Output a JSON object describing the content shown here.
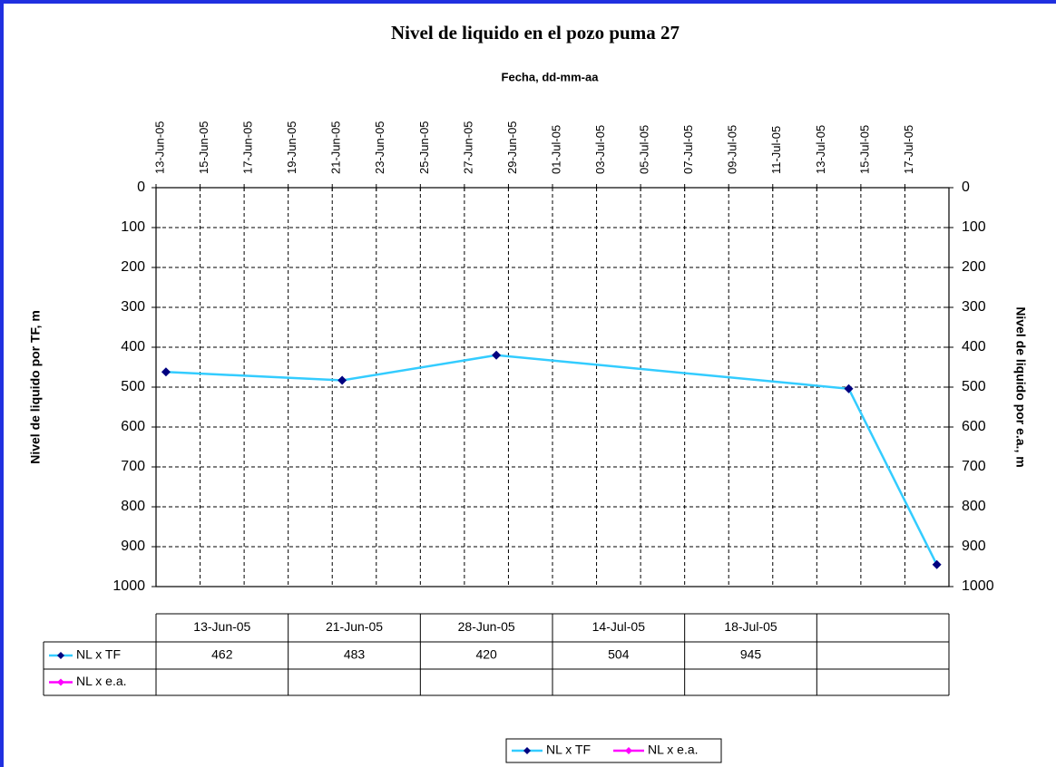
{
  "chart_data": {
    "type": "line",
    "title": "Nivel de liquido en el pozo puma 27",
    "x_label": "Fecha, dd-mm-aa",
    "y_label": "Nivel de liquido por TF, m",
    "y2_label": "Nivel de liquido por e.a., m",
    "x": [
      "13-Jun-05",
      "21-Jun-05",
      "28-Jun-05",
      "14-Jul-05",
      "18-Jul-05"
    ],
    "series": [
      {
        "name": "NL x TF",
        "color": "#33ccff",
        "marker_color": "#000080",
        "values": [
          462,
          483,
          420,
          504,
          945
        ]
      },
      {
        "name": "NL x e.a.",
        "color": "#ff00ff",
        "marker_color": "#ff00ff",
        "values": [
          null,
          null,
          null,
          null,
          null
        ]
      }
    ],
    "xlim": [
      "13-Jun-05",
      "19-Jul-05"
    ],
    "xticks": [
      "13-Jun-05",
      "15-Jun-05",
      "17-Jun-05",
      "19-Jun-05",
      "21-Jun-05",
      "23-Jun-05",
      "25-Jun-05",
      "27-Jun-05",
      "29-Jun-05",
      "01-Jul-05",
      "03-Jul-05",
      "05-Jul-05",
      "07-Jul-05",
      "09-Jul-05",
      "11-Jul-05",
      "13-Jul-05",
      "15-Jul-05",
      "17-Jul-05"
    ],
    "ylim": [
      0,
      1000
    ],
    "yticks": [
      0,
      100,
      200,
      300,
      400,
      500,
      600,
      700,
      800,
      900,
      1000
    ],
    "y2lim": [
      0,
      1000
    ],
    "y2ticks": [
      0,
      100,
      200,
      300,
      400,
      500,
      600,
      700,
      800,
      900,
      1000
    ],
    "y_inverted": true,
    "grid": true,
    "legend": "bottom",
    "data_table": true
  }
}
